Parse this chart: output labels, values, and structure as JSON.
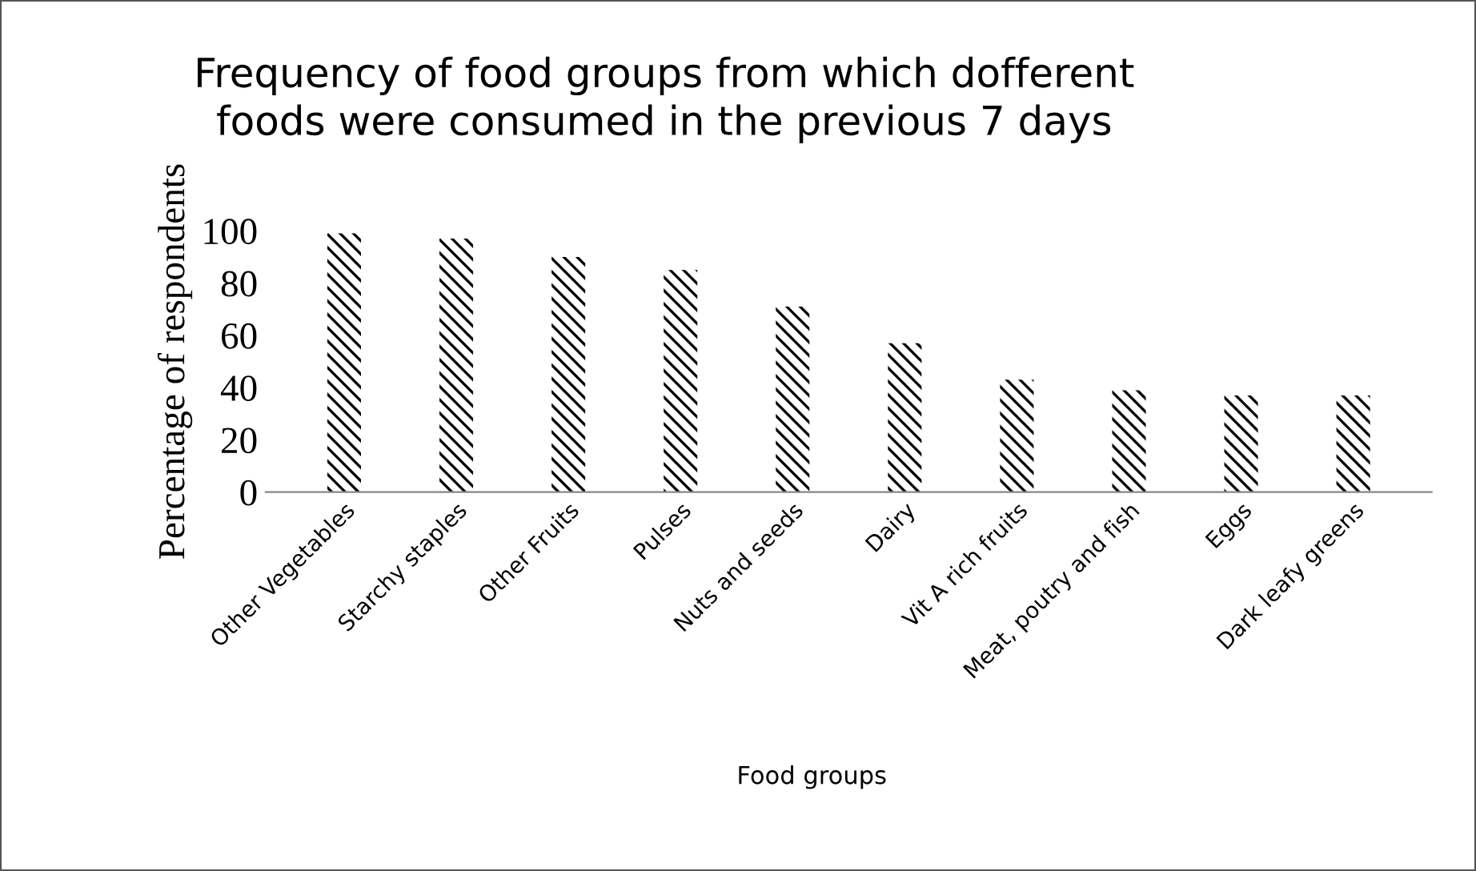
{
  "chart_data": {
    "type": "bar",
    "title": "Frequency of food groups from which dofferent\nfoods were consumed in the previous 7 days",
    "xlabel": "Food groups",
    "ylabel": "Percentage of respondents",
    "categories": [
      "Other Vegetables",
      "Starchy staples",
      "Other Fruits",
      "Pulses",
      "Nuts and seeds",
      "Dairy",
      "Vit A rich fruits",
      "Meat, poutry and fish",
      "Eggs",
      "Dark leafy greens"
    ],
    "values": [
      99,
      97,
      90,
      85,
      71,
      57,
      43,
      39,
      37,
      37
    ],
    "color": "#000000",
    "ylim": [
      0,
      100
    ],
    "yticks": [
      0,
      20,
      40,
      60,
      80,
      100
    ],
    "grid": false,
    "legend": false
  }
}
